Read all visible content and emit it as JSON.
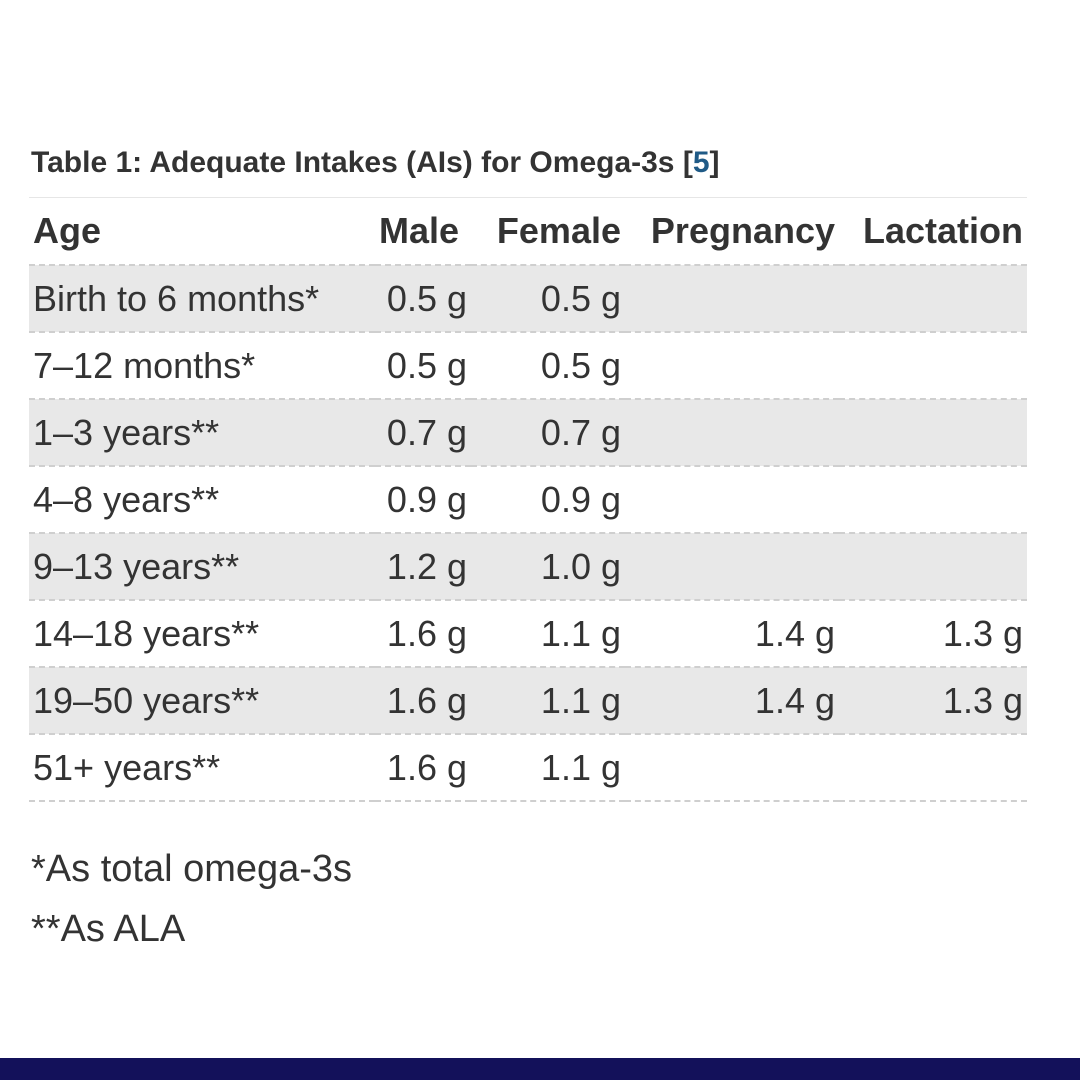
{
  "caption": {
    "text": "Table 1: Adequate Intakes (AIs) for Omega-3s ",
    "ref_open": "[",
    "ref": "5",
    "ref_close": "]"
  },
  "table": {
    "headers": [
      "Age",
      "Male",
      "Female",
      "Pregnancy",
      "Lactation"
    ],
    "rows": [
      {
        "age": "Birth to 6 months*",
        "male": "0.5 g",
        "female": "0.5 g",
        "pregnancy": "",
        "lactation": ""
      },
      {
        "age": "7–12 months*",
        "male": "0.5 g",
        "female": "0.5 g",
        "pregnancy": "",
        "lactation": ""
      },
      {
        "age": "1–3 years**",
        "male": "0.7 g",
        "female": "0.7 g",
        "pregnancy": "",
        "lactation": ""
      },
      {
        "age": "4–8 years**",
        "male": "0.9 g",
        "female": "0.9 g",
        "pregnancy": "",
        "lactation": ""
      },
      {
        "age": "9–13 years**",
        "male": "1.2 g",
        "female": "1.0 g",
        "pregnancy": "",
        "lactation": ""
      },
      {
        "age": "14–18 years**",
        "male": "1.6 g",
        "female": "1.1 g",
        "pregnancy": "1.4 g",
        "lactation": "1.3 g"
      },
      {
        "age": "19–50 years**",
        "male": "1.6 g",
        "female": "1.1 g",
        "pregnancy": "1.4 g",
        "lactation": "1.3 g"
      },
      {
        "age": "51+ years**",
        "male": "1.6 g",
        "female": "1.1 g",
        "pregnancy": "",
        "lactation": ""
      }
    ]
  },
  "notes": {
    "note1": "*As total omega-3s",
    "note2": "**As ALA"
  },
  "colors": {
    "text": "#333333",
    "link": "#1f5a86",
    "stripe": "#e8e8e8",
    "bottom_bar": "#13115a"
  }
}
